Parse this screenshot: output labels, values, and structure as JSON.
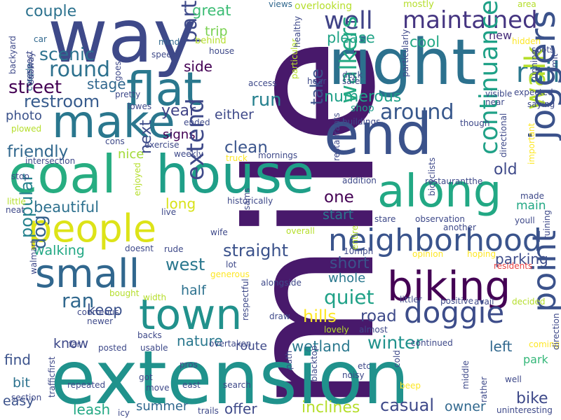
{
  "words": [
    {
      "text": "mile",
      "color": "#48196b",
      "vertical": true
    },
    {
      "text": "extension",
      "color": "#20928c",
      "vertical": false
    },
    {
      "text": "way",
      "color": "#3e4989",
      "vertical": false
    },
    {
      "text": "right",
      "color": "#2c718e",
      "vertical": false
    },
    {
      "text": "end",
      "color": "#3b528b",
      "vertical": false
    },
    {
      "text": "coal",
      "color": "#27ad81",
      "vertical": false
    },
    {
      "text": "house",
      "color": "#1f9f88",
      "vertical": false
    },
    {
      "text": "people",
      "color": "#dde318",
      "vertical": false
    },
    {
      "text": "town",
      "color": "#21918c",
      "vertical": false
    },
    {
      "text": "biking",
      "color": "#440154",
      "vertical": false
    },
    {
      "text": "flat",
      "color": "#2a788e",
      "vertical": false
    },
    {
      "text": "make",
      "color": "#2a778e",
      "vertical": false
    },
    {
      "text": "along",
      "color": "#22a884",
      "vertical": false
    },
    {
      "text": "small",
      "color": "#31678e",
      "vertical": false
    },
    {
      "text": "neighborhood",
      "color": "#3a548c",
      "vertical": false
    },
    {
      "text": "doggie",
      "color": "#3d4d8a",
      "vertical": false
    },
    {
      "text": "maintained",
      "color": "#453581",
      "vertical": false
    },
    {
      "text": "well",
      "color": "#404387",
      "vertical": false
    },
    {
      "text": "around",
      "color": "#38588c",
      "vertical": false
    },
    {
      "text": "round",
      "color": "#2d718e",
      "vertical": false
    },
    {
      "text": "street",
      "color": "#440154",
      "vertical": false
    },
    {
      "text": "restroom",
      "color": "#375b8d",
      "vertical": false
    },
    {
      "text": "scenic",
      "color": "#2c728e",
      "vertical": false
    },
    {
      "text": "couple",
      "color": "#2c728e",
      "vertical": false
    },
    {
      "text": "stage",
      "color": "#31678e",
      "vertical": false
    },
    {
      "text": "run",
      "color": "#26818e",
      "vertical": false
    },
    {
      "text": "side",
      "color": "#440154",
      "vertical": false
    },
    {
      "text": "part",
      "color": "#3e4a89",
      "vertical": true
    },
    {
      "text": "great",
      "color": "#3cbc74",
      "vertical": false
    },
    {
      "text": "trip",
      "color": "#7ad151",
      "vertical": false
    },
    {
      "text": "please",
      "color": "#20a386",
      "vertical": false
    },
    {
      "text": "cool",
      "color": "#22a884",
      "vertical": false
    },
    {
      "text": "new",
      "color": "#472d7b",
      "vertical": false
    },
    {
      "text": "rail",
      "color": "#2a778e",
      "vertical": false
    },
    {
      "text": "numerous",
      "color": "#1fa088",
      "vertical": false
    },
    {
      "text": "take",
      "color": "#3b528b",
      "vertical": true
    },
    {
      "text": "shop",
      "color": "#1f9e89",
      "vertical": false
    },
    {
      "text": "walk",
      "color": "#b5de2b",
      "vertical": true
    },
    {
      "text": "joggers",
      "color": "#3b528b",
      "vertical": true
    },
    {
      "text": "continuance",
      "color": "#1fa187",
      "vertical": true
    },
    {
      "text": "year",
      "color": "#414487",
      "vertical": false
    },
    {
      "text": "either",
      "color": "#3e4989",
      "vertical": false
    },
    {
      "text": "photo",
      "color": "#3b528b",
      "vertical": false
    },
    {
      "text": "signs",
      "color": "#440154",
      "vertical": false
    },
    {
      "text": "friendly",
      "color": "#31688e",
      "vertical": false
    },
    {
      "text": "clean",
      "color": "#3a548c",
      "vertical": false
    },
    {
      "text": "nice",
      "color": "#a2da37",
      "vertical": false
    },
    {
      "text": "next",
      "color": "#3e4c8a",
      "vertical": true
    },
    {
      "text": "old",
      "color": "#3e4989",
      "vertical": false
    },
    {
      "text": "walkers",
      "color": "#23a983",
      "vertical": true
    },
    {
      "text": "one",
      "color": "#440154",
      "vertical": false
    },
    {
      "text": "start",
      "color": "#2a788e",
      "vertical": false
    },
    {
      "text": "long",
      "color": "#d8e219",
      "vertical": false
    },
    {
      "text": "beautiful",
      "color": "#2d708e",
      "vertical": false
    },
    {
      "text": "extend",
      "color": "#3e4989",
      "vertical": true
    },
    {
      "text": "main",
      "color": "#22a884",
      "vertical": false
    },
    {
      "text": "dog",
      "color": "#34618d",
      "vertical": true
    },
    {
      "text": "walking",
      "color": "#22a884",
      "vertical": false
    },
    {
      "text": "straight",
      "color": "#3b528b",
      "vertical": false
    },
    {
      "text": "west",
      "color": "#2a778e",
      "vertical": false
    },
    {
      "text": "parking",
      "color": "#3e4c8a",
      "vertical": false
    },
    {
      "text": "short",
      "color": "#3b528b",
      "vertical": false
    },
    {
      "text": "popular",
      "color": "#26828e",
      "vertical": true
    },
    {
      "text": "whole",
      "color": "#2a788e",
      "vertical": false
    },
    {
      "text": "half",
      "color": "#2c718e",
      "vertical": false
    },
    {
      "text": "quiet",
      "color": "#1fa187",
      "vertical": false
    },
    {
      "text": "ran",
      "color": "#31688e",
      "vertical": false
    },
    {
      "text": "road",
      "color": "#3e4a89",
      "vertical": false
    },
    {
      "text": "keep",
      "color": "#3b528b",
      "vertical": false
    },
    {
      "text": "hills",
      "color": "#fde725",
      "vertical": false
    },
    {
      "text": "know",
      "color": "#3e4989",
      "vertical": false
    },
    {
      "text": "nature",
      "color": "#2a788e",
      "vertical": false
    },
    {
      "text": "point",
      "color": "#3b528b",
      "vertical": true
    },
    {
      "text": "winter",
      "color": "#20928c",
      "vertical": false
    },
    {
      "text": "left",
      "color": "#31688e",
      "vertical": false
    },
    {
      "text": "wetland",
      "color": "#2a788e",
      "vertical": false
    },
    {
      "text": "route",
      "color": "#3e4989",
      "vertical": false
    },
    {
      "text": "find",
      "color": "#3b528b",
      "vertical": false
    },
    {
      "text": "bit",
      "color": "#2c728e",
      "vertical": false
    },
    {
      "text": "easy",
      "color": "#3b528b",
      "vertical": false
    },
    {
      "text": "park",
      "color": "#35b779",
      "vertical": false
    },
    {
      "text": "bike",
      "color": "#3e4989",
      "vertical": false
    },
    {
      "text": "leash",
      "color": "#22a884",
      "vertical": false
    },
    {
      "text": "summer",
      "color": "#31688e",
      "vertical": false
    },
    {
      "text": "offer",
      "color": "#3e4989",
      "vertical": false
    },
    {
      "text": "inclines",
      "color": "#b5de2b",
      "vertical": false
    },
    {
      "text": "casual",
      "color": "#3e4989",
      "vertical": false
    },
    {
      "text": "owner",
      "color": "#31688e",
      "vertical": false
    },
    {
      "text": "views",
      "color": "#31688e",
      "vertical": false
    },
    {
      "text": "overlooking",
      "color": "#b5de2b",
      "vertical": false
    },
    {
      "text": "mostly",
      "color": "#b5de2b",
      "vertical": false
    },
    {
      "text": "area",
      "color": "#b5de2b",
      "vertical": false
    },
    {
      "text": "couple",
      "color": "#2c728e",
      "vertical": true
    },
    {
      "text": "subway",
      "color": "#3e4989",
      "vertical": true
    },
    {
      "text": "car",
      "color": "#31688e",
      "vertical": false
    },
    {
      "text": "mind",
      "color": "#31688e",
      "vertical": false
    },
    {
      "text": "behind",
      "color": "#b5de2b",
      "vertical": false
    },
    {
      "text": "speed",
      "color": "#3e4989",
      "vertical": false
    },
    {
      "text": "house",
      "color": "#3e4989",
      "vertical": false
    },
    {
      "text": "particular",
      "color": "#b5de2b",
      "vertical": true
    },
    {
      "text": "healthy",
      "color": "#3e4989",
      "vertical": true
    },
    {
      "text": "particularly",
      "color": "#3e4989",
      "vertical": true
    },
    {
      "text": "spots",
      "color": "#3e4989",
      "vertical": false
    },
    {
      "text": "hidden",
      "color": "#fde725",
      "vertical": false
    },
    {
      "text": "running",
      "color": "#3e4989",
      "vertical": true
    },
    {
      "text": "limit",
      "color": "#3e4989",
      "vertical": true
    },
    {
      "text": "backyard",
      "color": "#3e4989",
      "vertical": true
    },
    {
      "text": "respect",
      "color": "#3e4989",
      "vertical": true
    },
    {
      "text": "goes",
      "color": "#3e4989",
      "vertical": true
    },
    {
      "text": "pretty",
      "color": "#3e4989",
      "vertical": false
    },
    {
      "text": "access",
      "color": "#3e4989",
      "vertical": false
    },
    {
      "text": "hear",
      "color": "#3e4989",
      "vertical": false
    },
    {
      "text": "deck",
      "color": "#3e4989",
      "vertical": false
    },
    {
      "text": "safe",
      "color": "#3e4989",
      "vertical": false
    },
    {
      "text": "visible",
      "color": "#3e4989",
      "vertical": false
    },
    {
      "text": "expected",
      "color": "#3e4989",
      "vertical": false
    },
    {
      "text": "near",
      "color": "#3e4989",
      "vertical": false
    },
    {
      "text": "saying",
      "color": "#3e4989",
      "vertical": false
    },
    {
      "text": "lowes",
      "color": "#3e4989",
      "vertical": false
    },
    {
      "text": "ended",
      "color": "#3e4989",
      "vertical": false
    },
    {
      "text": "plowed",
      "color": "#b5de2b",
      "vertical": false
    },
    {
      "text": "cons",
      "color": "#3e4989",
      "vertical": false
    },
    {
      "text": "exercise",
      "color": "#3e4989",
      "vertical": false
    },
    {
      "text": "buildings",
      "color": "#3e4989",
      "vertical": false
    },
    {
      "text": "though",
      "color": "#3e4989",
      "vertical": false
    },
    {
      "text": "directional",
      "color": "#3e4989",
      "vertical": true
    },
    {
      "text": "important",
      "color": "#fde725",
      "vertical": true
    },
    {
      "text": "intersection",
      "color": "#3e4989",
      "vertical": false
    },
    {
      "text": "weekly",
      "color": "#3e4989",
      "vertical": false
    },
    {
      "text": "truck",
      "color": "#fde725",
      "vertical": false
    },
    {
      "text": "mornings",
      "color": "#3e4989",
      "vertical": false
    },
    {
      "text": "bicyclists",
      "color": "#3e4989",
      "vertical": true
    },
    {
      "text": "restaurants",
      "color": "#3e4989",
      "vertical": true
    },
    {
      "text": "addition",
      "color": "#3e4989",
      "vertical": false
    },
    {
      "text": "restaurantthe",
      "color": "#3e4989",
      "vertical": false
    },
    {
      "text": "stop",
      "color": "#3e4989",
      "vertical": false
    },
    {
      "text": "enjoyed",
      "color": "#b5de2b",
      "vertical": true
    },
    {
      "text": "historically",
      "color": "#3e4989",
      "vertical": false
    },
    {
      "text": "made",
      "color": "#3e4989",
      "vertical": false
    },
    {
      "text": "little",
      "color": "#b5de2b",
      "vertical": false
    },
    {
      "text": "neat",
      "color": "#3e4989",
      "vertical": false
    },
    {
      "text": "live",
      "color": "#3e4989",
      "vertical": false
    },
    {
      "text": "sams",
      "color": "#3e4989",
      "vertical": true
    },
    {
      "text": "stare",
      "color": "#3e4989",
      "vertical": false
    },
    {
      "text": "observation",
      "color": "#3e4989",
      "vertical": false
    },
    {
      "text": "youll",
      "color": "#3e4989",
      "vertical": false
    },
    {
      "text": "another",
      "color": "#3e4989",
      "vertical": false
    },
    {
      "text": "wife",
      "color": "#3e4989",
      "vertical": false
    },
    {
      "text": "overall",
      "color": "#b5de2b",
      "vertical": false
    },
    {
      "text": "ruining",
      "color": "#3e4989",
      "vertical": true
    },
    {
      "text": "walmart",
      "color": "#3e4989",
      "vertical": true
    },
    {
      "text": "doesnt",
      "color": "#3e4989",
      "vertical": false
    },
    {
      "text": "rude",
      "color": "#3e4989",
      "vertical": false
    },
    {
      "text": "10mph",
      "color": "#3e4989",
      "vertical": false
    },
    {
      "text": "entire",
      "color": "#b5de2b",
      "vertical": true
    },
    {
      "text": "opinion",
      "color": "#fde725",
      "vertical": false
    },
    {
      "text": "hoping",
      "color": "#fde725",
      "vertical": false
    },
    {
      "text": "residents",
      "color": "#ea4242",
      "vertical": false
    },
    {
      "text": "lot",
      "color": "#3e4989",
      "vertical": false
    },
    {
      "text": "generous",
      "color": "#fde725",
      "vertical": false
    },
    {
      "text": "alongside",
      "color": "#3e4989",
      "vertical": false
    },
    {
      "text": "bought",
      "color": "#b5de2b",
      "vertical": false
    },
    {
      "text": "width",
      "color": "#b5de2b",
      "vertical": false
    },
    {
      "text": "littler",
      "color": "#3e4989",
      "vertical": false
    },
    {
      "text": "positive",
      "color": "#3e4989",
      "vertical": false
    },
    {
      "text": "avail",
      "color": "#3e4989",
      "vertical": false
    },
    {
      "text": "decided",
      "color": "#b5de2b",
      "vertical": false
    },
    {
      "text": "courteous",
      "color": "#3e4989",
      "vertical": false
    },
    {
      "text": "newer",
      "color": "#3e4989",
      "vertical": false
    },
    {
      "text": "respectful",
      "color": "#3e4989",
      "vertical": true
    },
    {
      "text": "draw",
      "color": "#3e4989",
      "vertical": false
    },
    {
      "text": "lovely",
      "color": "#b5de2b",
      "vertical": false
    },
    {
      "text": "almost",
      "color": "#3e4989",
      "vertical": false
    },
    {
      "text": "far",
      "color": "#3e4989",
      "vertical": false
    },
    {
      "text": "backs",
      "color": "#3e4989",
      "vertical": false
    },
    {
      "text": "posted",
      "color": "#3e4989",
      "vertical": false
    },
    {
      "text": "usable",
      "color": "#3e4989",
      "vertical": false
    },
    {
      "text": "overtaken",
      "color": "#3e4989",
      "vertical": false
    },
    {
      "text": "continued",
      "color": "#3e4989",
      "vertical": false
    },
    {
      "text": "coming",
      "color": "#fde725",
      "vertical": false
    },
    {
      "text": "direction",
      "color": "#3e4989",
      "vertical": true
    },
    {
      "text": "pros",
      "color": "#3e4989",
      "vertical": false
    },
    {
      "text": "got",
      "color": "#3e4989",
      "vertical": false
    },
    {
      "text": "trafficfirst",
      "color": "#3e4989",
      "vertical": true
    },
    {
      "text": "section",
      "color": "#3e4989",
      "vertical": false
    },
    {
      "text": "repeated",
      "color": "#3e4989",
      "vertical": false
    },
    {
      "text": "move",
      "color": "#3e4989",
      "vertical": false
    },
    {
      "text": "east",
      "color": "#3e4989",
      "vertical": false
    },
    {
      "text": "search",
      "color": "#3e4989",
      "vertical": false
    },
    {
      "text": "path",
      "color": "#3e4989",
      "vertical": true
    },
    {
      "text": "blacktop",
      "color": "#3e4989",
      "vertical": true
    },
    {
      "text": "noisy",
      "color": "#3e4989",
      "vertical": false
    },
    {
      "text": "etc",
      "color": "#3e4989",
      "vertical": false
    },
    {
      "text": "cold",
      "color": "#3e4989",
      "vertical": true
    },
    {
      "text": "beep",
      "color": "#fde725",
      "vertical": false
    },
    {
      "text": "middle",
      "color": "#3e4989",
      "vertical": true
    },
    {
      "text": "rather",
      "color": "#3e4989",
      "vertical": true
    },
    {
      "text": "well",
      "color": "#3e4989",
      "vertical": false
    },
    {
      "text": "uninteresting",
      "color": "#3e4989",
      "vertical": false
    },
    {
      "text": "icy",
      "color": "#3e4989",
      "vertical": false
    },
    {
      "text": "trails",
      "color": "#3e4989",
      "vertical": false
    }
  ]
}
